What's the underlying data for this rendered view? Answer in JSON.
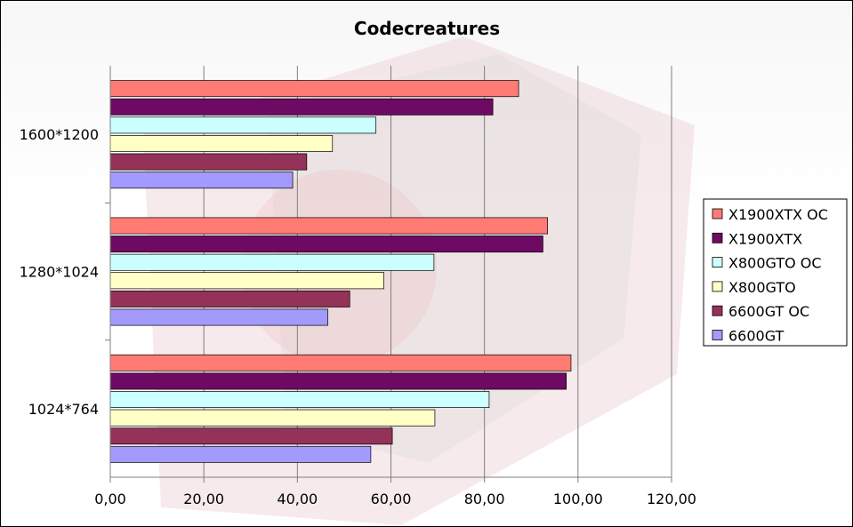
{
  "chart_data": {
    "type": "bar",
    "orientation": "horizontal",
    "title": "Codecreatures",
    "xlabel": "",
    "ylabel": "",
    "categories": [
      "1600*1200",
      "1280*1024",
      "1024*764"
    ],
    "xlim": [
      0,
      120
    ],
    "x_ticks": [
      "0,00",
      "20,00",
      "40,00",
      "60,00",
      "80,00",
      "100,00",
      "120,00"
    ],
    "grid": "vertical",
    "legend_position": "right",
    "series": [
      {
        "name": "X1900XTX OC",
        "color": "#ff7b74",
        "values": [
          87.3,
          93.5,
          98.5
        ]
      },
      {
        "name": "X1900XTX",
        "color": "#6e0a63",
        "values": [
          81.8,
          92.5,
          97.5
        ]
      },
      {
        "name": "X800GTO OC",
        "color": "#ccffff",
        "values": [
          56.8,
          69.2,
          81.0
        ]
      },
      {
        "name": "X800GTO",
        "color": "#ffffc6",
        "values": [
          47.5,
          58.5,
          69.4
        ]
      },
      {
        "name": "6600GT OC",
        "color": "#953259",
        "values": [
          42.0,
          51.2,
          60.3
        ]
      },
      {
        "name": "6600GT",
        "color": "#a29afd",
        "values": [
          39.0,
          46.5,
          55.7
        ]
      }
    ]
  }
}
